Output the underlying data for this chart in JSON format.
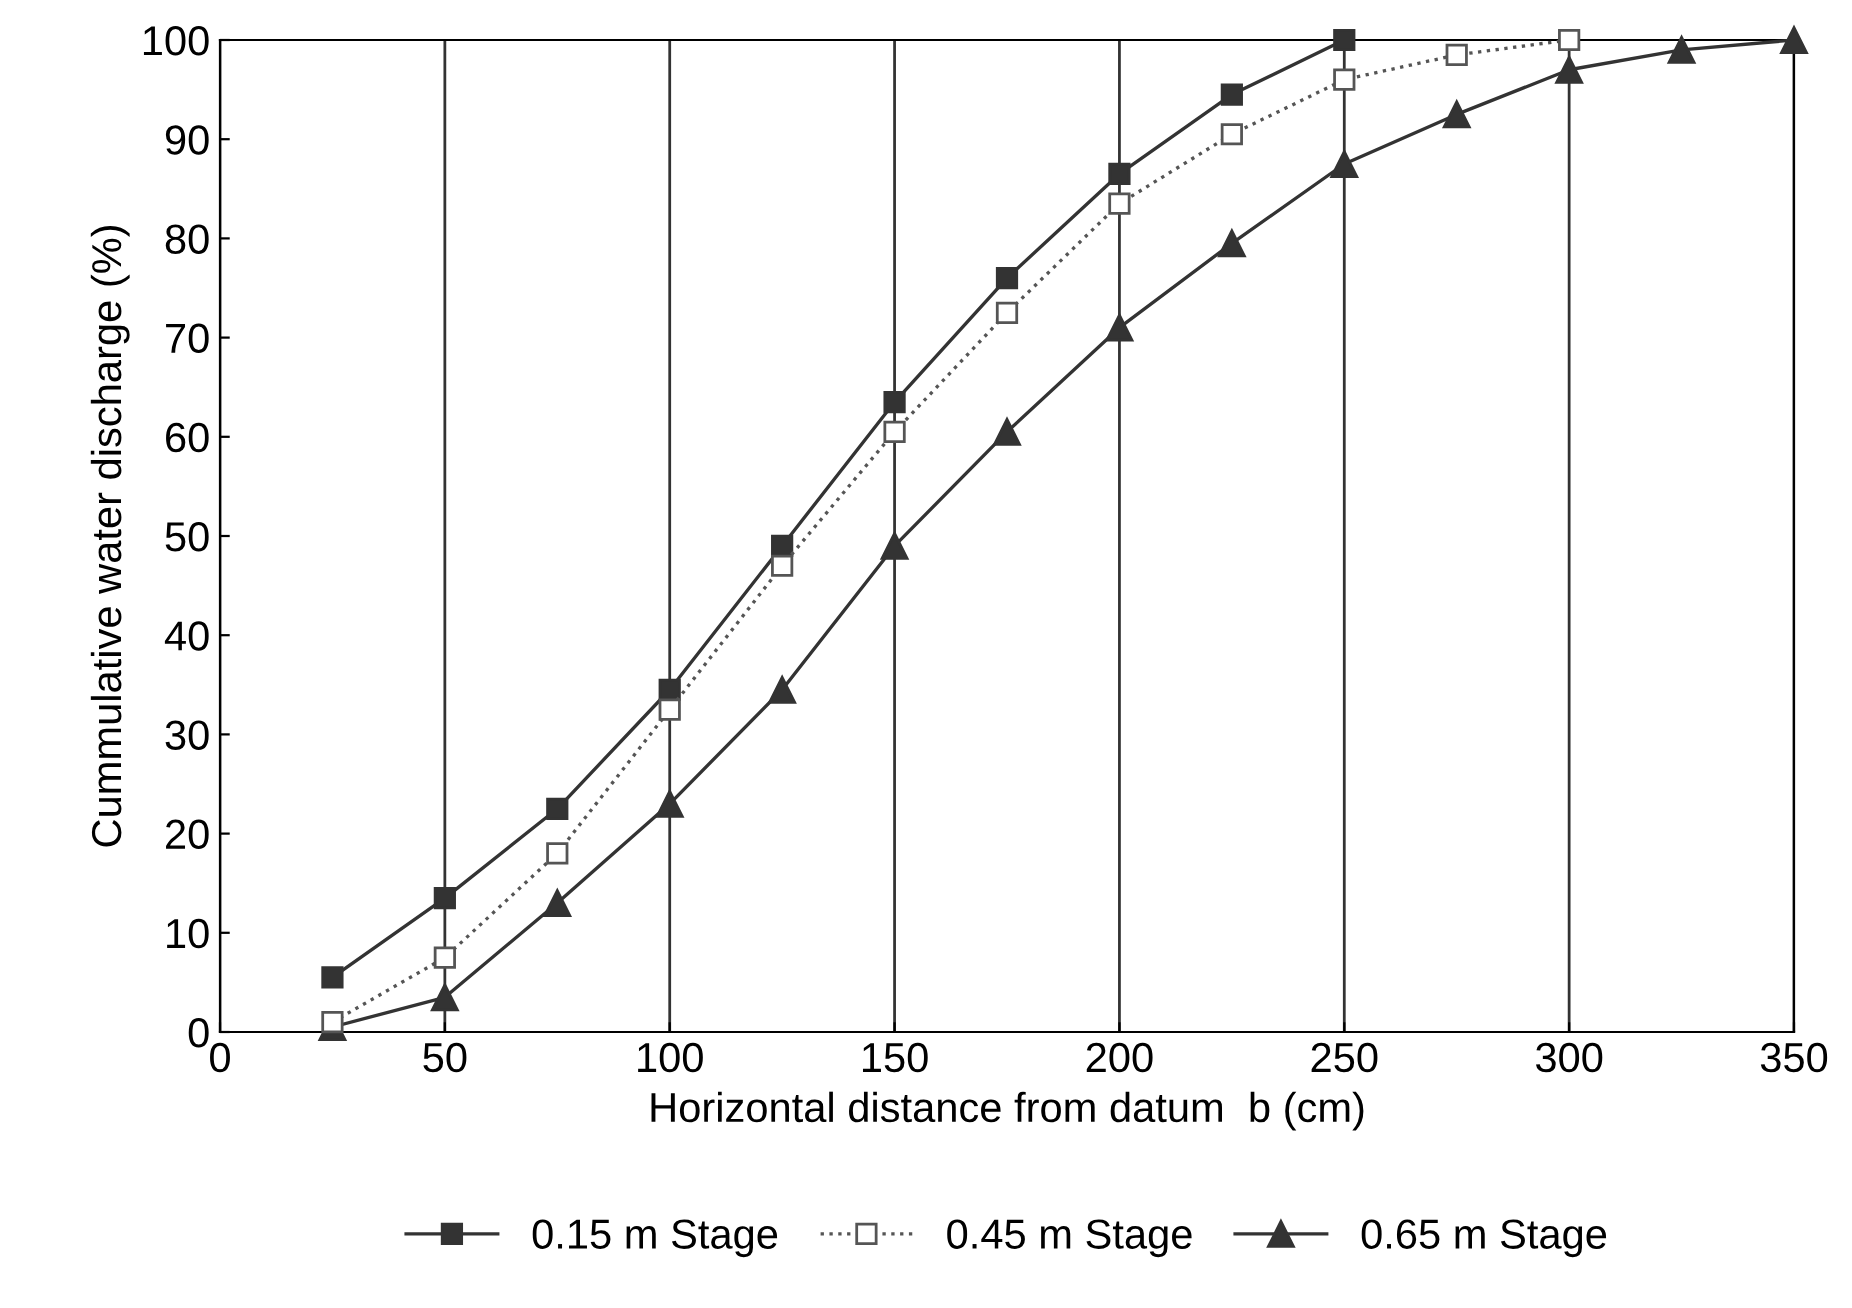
{
  "chart_data": {
    "type": "line",
    "xlabel": "Horizontal distance from datum  b (cm)",
    "ylabel": "Cummulative water discharge (%)",
    "xlim": [
      0,
      350
    ],
    "xticks": [
      0,
      50,
      100,
      150,
      200,
      250,
      300,
      350
    ],
    "ylim": [
      0,
      100
    ],
    "yticks": [
      0,
      10,
      20,
      30,
      40,
      50,
      60,
      70,
      80,
      90,
      100
    ],
    "grid": "x",
    "legend": "bottom",
    "series": [
      {
        "name": "0.15 m Stage",
        "color": "#333333",
        "marker": "square",
        "line_style": "solid",
        "x": [
          25,
          50,
          75,
          100,
          125,
          150,
          175,
          200,
          225,
          250
        ],
        "values": [
          5.5,
          13.5,
          22.5,
          34.5,
          49,
          63.5,
          76,
          86.5,
          94.5,
          100
        ]
      },
      {
        "name": "0.45 m Stage",
        "color": "#555555",
        "marker": "square",
        "line_style": "dotted",
        "x": [
          25,
          50,
          75,
          100,
          125,
          150,
          175,
          200,
          225,
          250,
          275,
          300
        ],
        "values": [
          1,
          7.5,
          18,
          32.5,
          47,
          60.5,
          72.5,
          83.5,
          90.5,
          96,
          98.5,
          100
        ]
      },
      {
        "name": "0.65 m Stage",
        "color": "#333333",
        "marker": "triangle",
        "line_style": "solid",
        "x": [
          25,
          50,
          75,
          100,
          125,
          150,
          175,
          200,
          225,
          250,
          275,
          300,
          325,
          350
        ],
        "values": [
          0.5,
          3.5,
          13,
          23,
          34.5,
          49,
          60.5,
          71,
          79.5,
          87.5,
          92.5,
          97,
          99,
          100
        ]
      }
    ]
  }
}
